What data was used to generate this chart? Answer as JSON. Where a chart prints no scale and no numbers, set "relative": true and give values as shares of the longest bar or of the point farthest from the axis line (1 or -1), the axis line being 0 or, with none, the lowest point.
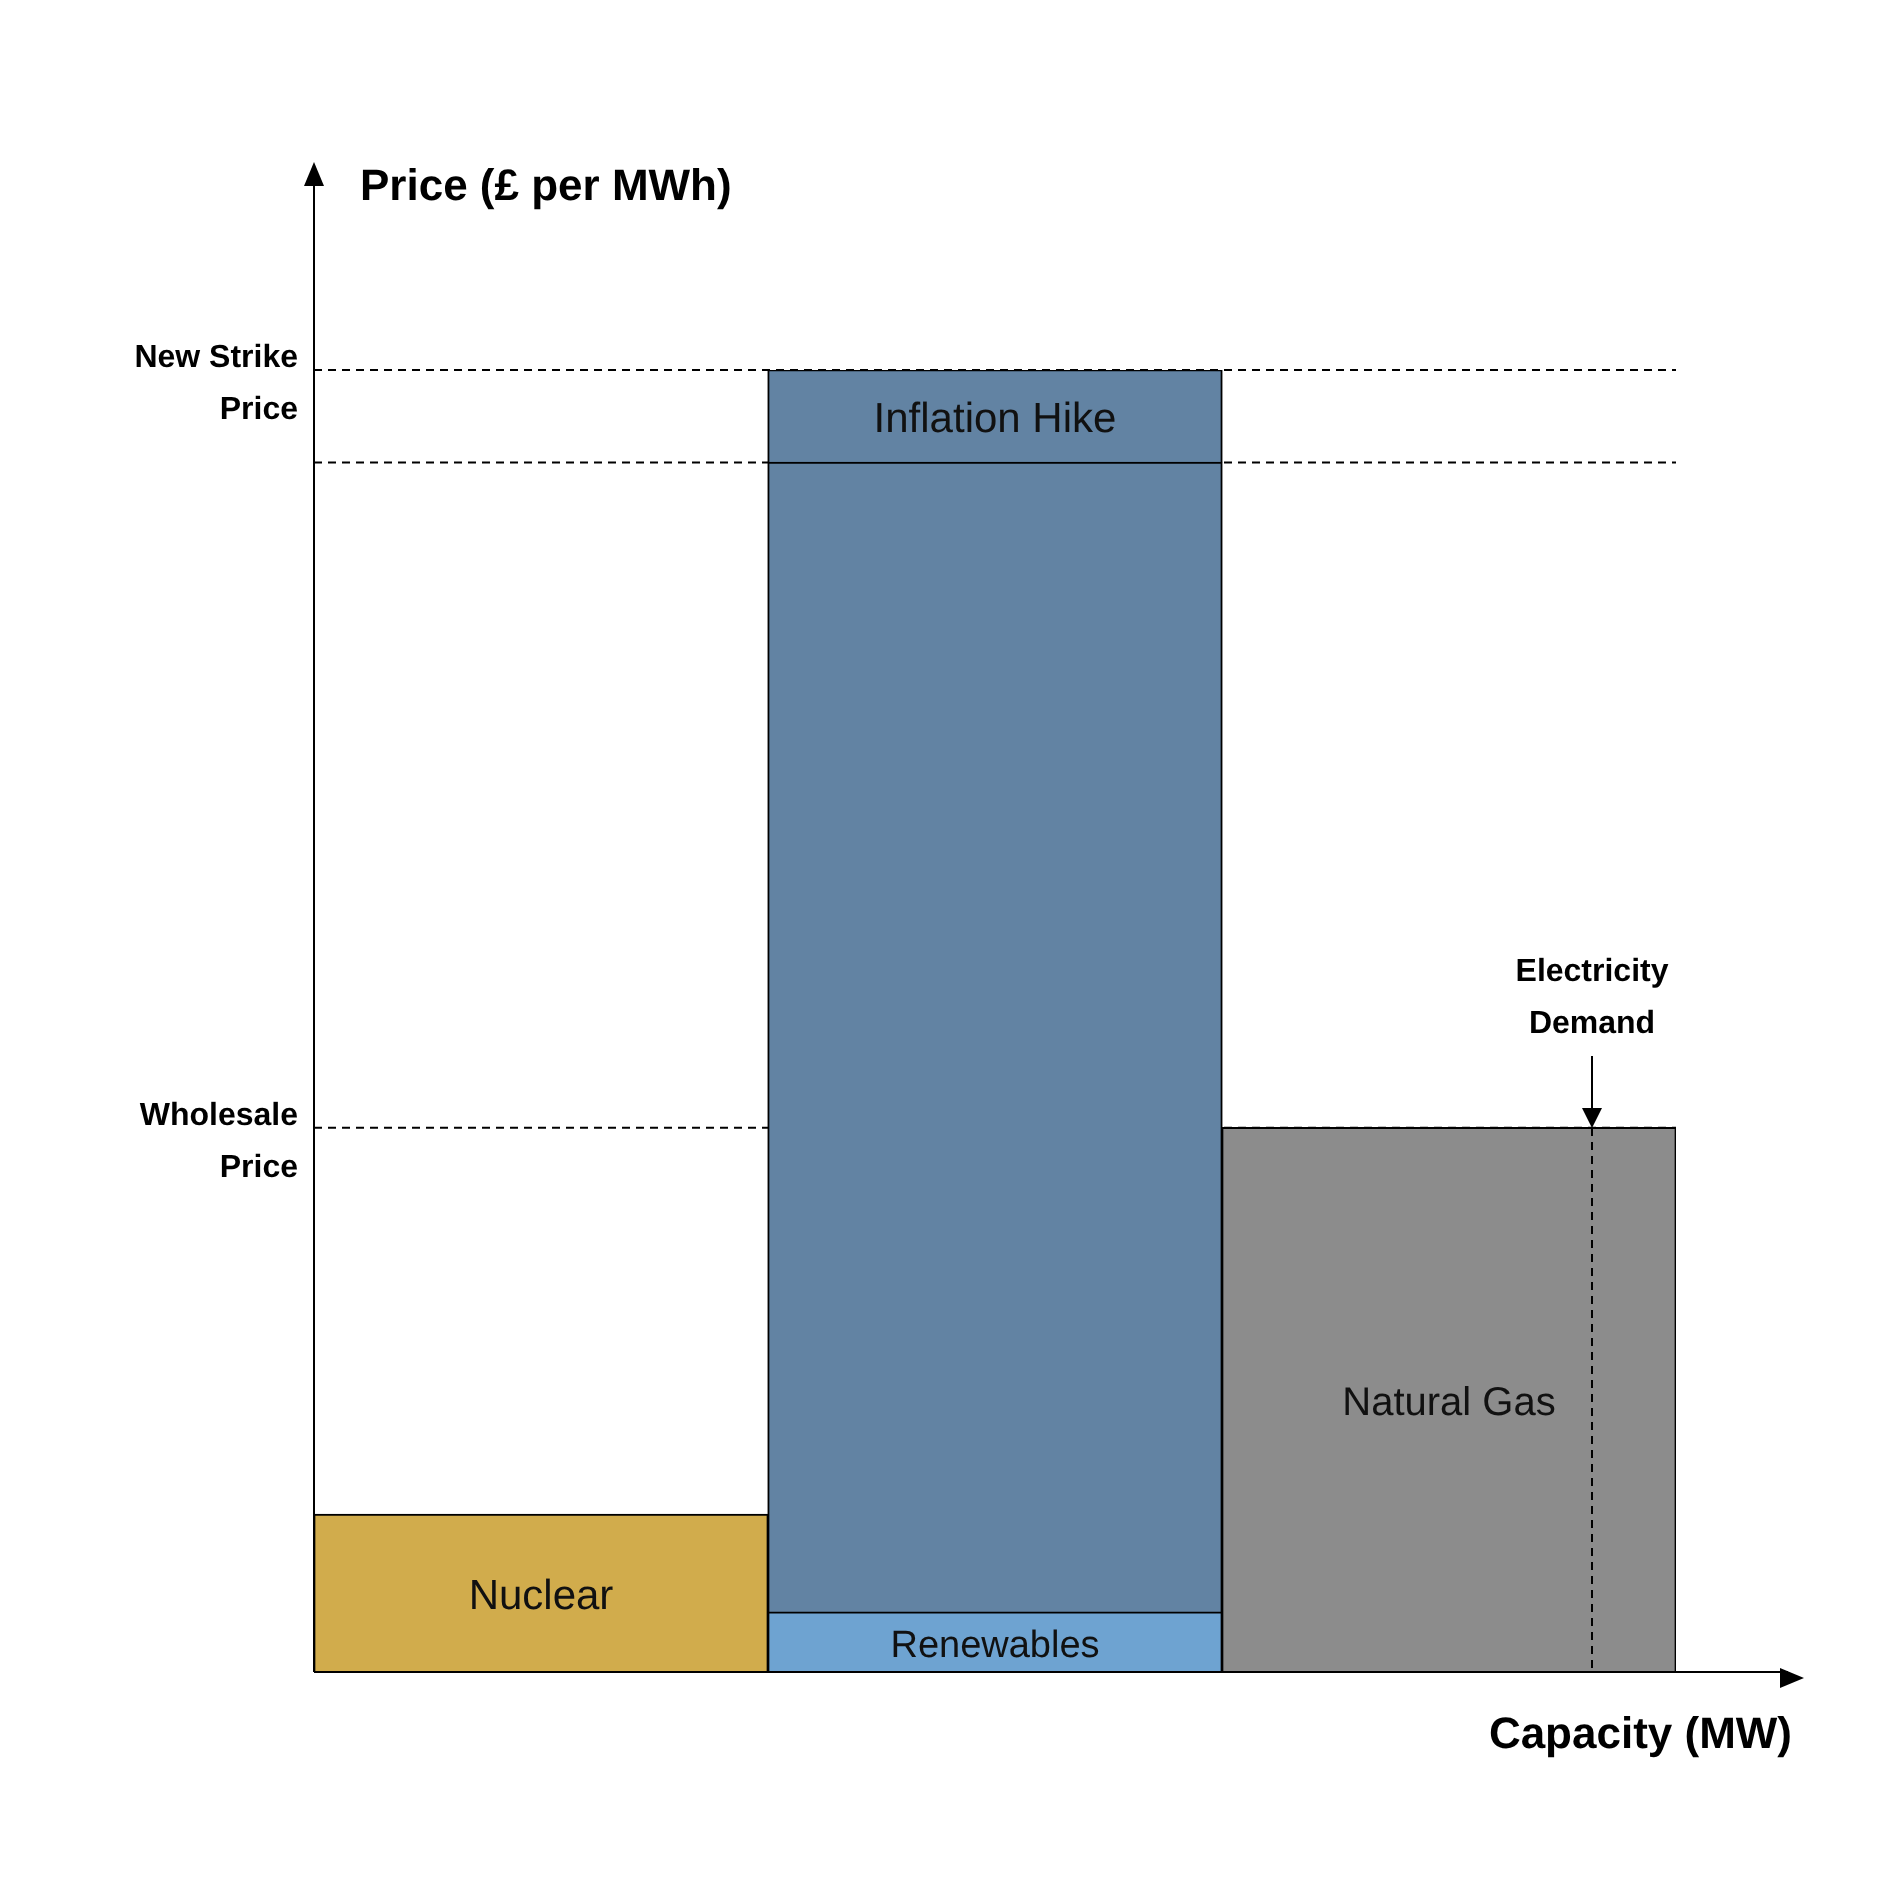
{
  "chart_data": {
    "type": "bar",
    "stacked": true,
    "relative": true,
    "xlabel": "Capacity (MW)",
    "ylabel": "Price (£ per MWh)",
    "categories": [
      null,
      null,
      null
    ],
    "series": [
      {
        "name": "Nuclear",
        "color": "#d1ac4c",
        "values": [
          0.121,
          null,
          null
        ]
      },
      {
        "name": "Renewables",
        "color": "#6ea3d1",
        "values": [
          null,
          0.046,
          null
        ]
      },
      {
        "color": "#6283a3",
        "values": [
          null,
          0.883,
          null
        ]
      },
      {
        "name": "Inflation Hike",
        "color": "#6283a3",
        "values": [
          null,
          0.071,
          null
        ]
      },
      {
        "name": "Natural Gas",
        "color": "#8c8c8c",
        "values": [
          null,
          null,
          0.418
        ]
      }
    ],
    "ref_lines": [
      {
        "axis": "y",
        "value": 1,
        "label": "New Strike Price",
        "line_style": "dashed"
      },
      {
        "axis": "y",
        "value": 0.929,
        "line_style": "dashed"
      },
      {
        "axis": "y",
        "value": 0.418,
        "label": "Wholesale Price",
        "line_style": "dashed"
      }
    ],
    "annotations": [
      "Electricity Demand"
    ],
    "legend": false
  }
}
